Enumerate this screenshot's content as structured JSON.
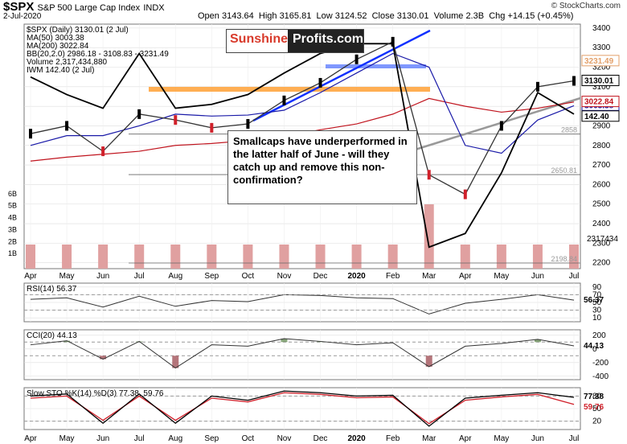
{
  "header": {
    "symbol": "$SPX",
    "name": "S&P 500 Large Cap Index",
    "exchange": "INDX",
    "date": "2-Jul-2020",
    "open_label": "Open",
    "open": "3143.64",
    "high_label": "High",
    "high": "3165.81",
    "low_label": "Low",
    "low": "3124.52",
    "close_label": "Close",
    "close": "3130.01",
    "volume_label": "Volume",
    "volume": "2.3B",
    "chg_label": "Chg",
    "chg": "+14.15 (+0.45%)",
    "watermark": "© StockCharts.com"
  },
  "logo": {
    "part1": "Sunshine",
    "part2": "Profits.com"
  },
  "annotation": "Smallcaps have underperformed in the latter half of June - will they catch up and remove this non-confirmation?",
  "colors": {
    "price_up": "#000000",
    "price_down": "#d0202a",
    "ma50": "#1a1aa8",
    "ma200": "#c0141e",
    "bb": "#e3a06a",
    "iwm": "#000000",
    "trend": "#1030ff",
    "support": "#ff9a28",
    "volume": "#e0a0a0"
  },
  "chart_data": [
    {
      "type": "line",
      "panel": "price",
      "legend": [
        "$SPX (Daily) 3130.01 (2 Jul)",
        "MA(50) 3003.38",
        "MA(200) 3022.84",
        "BB(20,2.0) 2986.18 - 3108.83 - 3231.49",
        "Volume 2,317,434,880",
        "IWM 142.40 (2 Jul)"
      ],
      "y_ticks": [
        "3400",
        "3300",
        "3200",
        "3100",
        "3000",
        "2900",
        "2800",
        "2700",
        "2600",
        "2500",
        "2400",
        "2300",
        "2200"
      ],
      "ylim": [
        2170,
        3420
      ],
      "x_ticks": [
        "Apr",
        "May",
        "Jun",
        "Jul",
        "Aug",
        "Sep",
        "Oct",
        "Nov",
        "Dec",
        "2020",
        "Feb",
        "Mar",
        "Apr",
        "May",
        "Jun",
        "Jul"
      ],
      "last_labels": [
        "3231.49",
        "3130.01",
        "3003.38",
        "3022.84",
        "142.40"
      ],
      "x": [
        "2019-04",
        "2019-05",
        "2019-06",
        "2019-07",
        "2019-08",
        "2019-09",
        "2019-10",
        "2019-11",
        "2019-12",
        "2020-01",
        "2020-02",
        "2020-03",
        "2020-04",
        "2020-05",
        "2020-06",
        "2020-07"
      ],
      "series": [
        {
          "name": "$SPX",
          "values": [
            2860,
            2900,
            2770,
            2960,
            2930,
            2890,
            2910,
            3030,
            3120,
            3240,
            3330,
            2650,
            2550,
            2900,
            3100,
            3130
          ]
        },
        {
          "name": "MA(50)",
          "values": [
            2800,
            2850,
            2850,
            2900,
            2960,
            2950,
            2955,
            2980,
            3070,
            3170,
            3270,
            3200,
            2800,
            2760,
            2930,
            3003
          ]
        },
        {
          "name": "MA(200)",
          "values": [
            2720,
            2740,
            2755,
            2770,
            2800,
            2810,
            2825,
            2845,
            2880,
            2910,
            2960,
            3040,
            3000,
            2970,
            2990,
            3022
          ]
        },
        {
          "name": "IWM",
          "values": [
            3150,
            3060,
            2990,
            3270,
            2990,
            3010,
            3060,
            3170,
            3270,
            3320,
            3320,
            2280,
            2350,
            2660,
            3070,
            2960
          ]
        }
      ],
      "horizontal_levels": [
        {
          "value": "2650.81",
          "label": "2650.81"
        },
        {
          "value": "2198.84",
          "label": "2198.84"
        },
        {
          "value": "2858",
          "label": "2858"
        }
      ],
      "volume_ticks": [
        "6B",
        "5B",
        "4B",
        "3B",
        "2B",
        "1B"
      ],
      "volume_last": "2317434"
    },
    {
      "type": "line",
      "panel": "rsi",
      "legend": "RSI(14) 56.37",
      "y_ticks": [
        "90",
        "70",
        "50",
        "30",
        "10"
      ],
      "ylim": [
        0,
        100
      ],
      "last_label": "56.37",
      "x": [
        "2019-04",
        "2019-05",
        "2019-06",
        "2019-07",
        "2019-08",
        "2019-09",
        "2019-10",
        "2019-11",
        "2019-12",
        "2020-01",
        "2020-02",
        "2020-03",
        "2020-04",
        "2020-05",
        "2020-06",
        "2020-07"
      ],
      "values": [
        58,
        62,
        38,
        66,
        40,
        55,
        52,
        70,
        68,
        62,
        60,
        20,
        48,
        58,
        70,
        56
      ]
    },
    {
      "type": "line",
      "panel": "cci",
      "legend": "CCI(20) 44.13",
      "y_ticks": [
        "200",
        "0",
        "-200",
        "-400"
      ],
      "ylim": [
        -450,
        280
      ],
      "last_label": "44.13",
      "x": [
        "2019-04",
        "2019-05",
        "2019-06",
        "2019-07",
        "2019-08",
        "2019-09",
        "2019-10",
        "2019-11",
        "2019-12",
        "2020-01",
        "2020-02",
        "2020-03",
        "2020-04",
        "2020-05",
        "2020-06",
        "2020-07"
      ],
      "values": [
        60,
        120,
        -150,
        110,
        -280,
        60,
        40,
        150,
        110,
        60,
        90,
        -260,
        40,
        80,
        140,
        44
      ]
    },
    {
      "type": "line",
      "panel": "sto",
      "legend": "Slow STO %K(14) %D(3) 77.38, 59.76",
      "y_ticks": [
        "80",
        "50",
        "20"
      ],
      "ylim": [
        0,
        100
      ],
      "last_labels": [
        "77.38",
        "59.76"
      ],
      "x": [
        "2019-04",
        "2019-05",
        "2019-06",
        "2019-07",
        "2019-08",
        "2019-09",
        "2019-10",
        "2019-11",
        "2019-12",
        "2020-01",
        "2020-02",
        "2020-03",
        "2020-04",
        "2020-05",
        "2020-06",
        "2020-07"
      ],
      "series": [
        {
          "name": "%K",
          "values": [
            80,
            85,
            15,
            85,
            15,
            80,
            70,
            92,
            88,
            80,
            82,
            8,
            75,
            82,
            88,
            77
          ]
        },
        {
          "name": "%D",
          "values": [
            75,
            80,
            22,
            80,
            22,
            75,
            66,
            88,
            84,
            76,
            78,
            14,
            70,
            78,
            84,
            60
          ]
        }
      ],
      "x_ticks": [
        "Apr",
        "May",
        "Jun",
        "Jul",
        "Aug",
        "Sep",
        "Oct",
        "Nov",
        "Dec",
        "2020",
        "Feb",
        "Mar",
        "Apr",
        "May",
        "Jun",
        "Jul"
      ]
    }
  ]
}
